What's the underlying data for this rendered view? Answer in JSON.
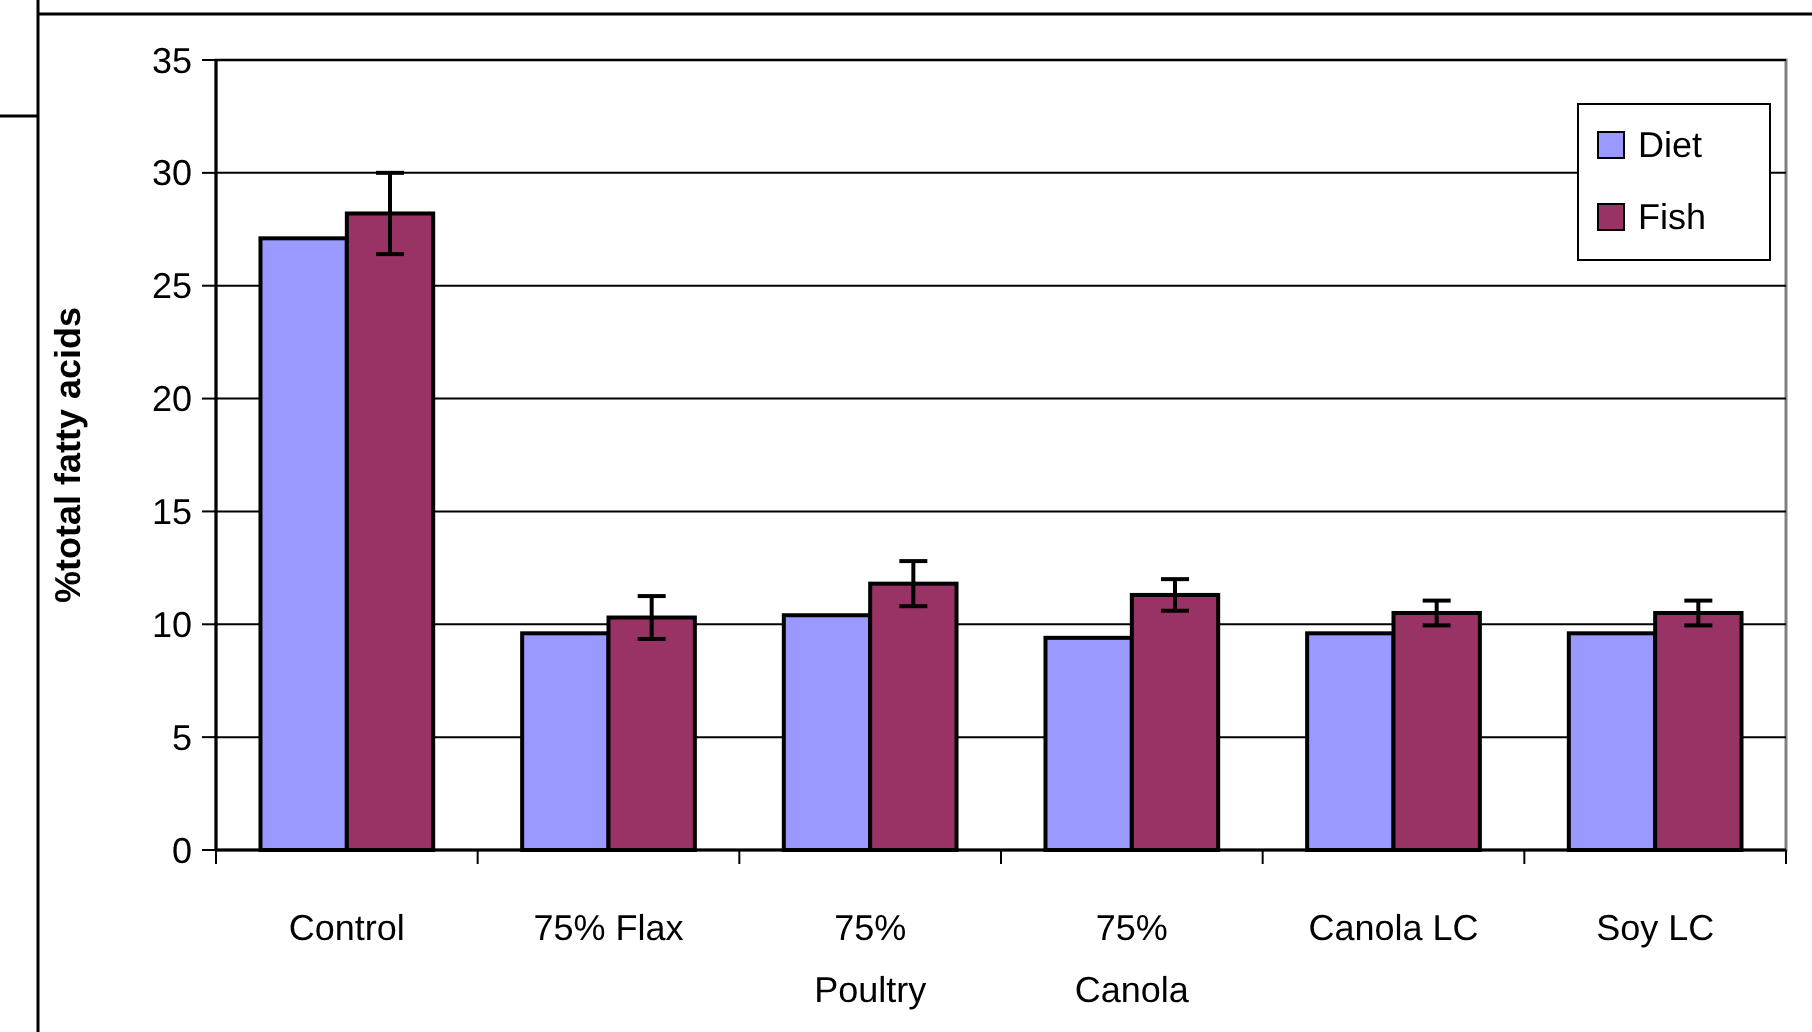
{
  "chart_data": {
    "type": "bar",
    "ylabel": "%total fatty acids",
    "categories": [
      "Control",
      "75% Flax",
      "75%\nPoultry",
      "75%\nCanola",
      "Canola LC",
      "Soy LC"
    ],
    "series": [
      {
        "name": "Diet",
        "color": "#9999ff",
        "values": [
          27.1,
          9.6,
          10.4,
          9.4,
          9.6,
          9.6
        ]
      },
      {
        "name": "Fish",
        "color": "#993366",
        "values": [
          28.2,
          10.3,
          11.8,
          11.3,
          10.5,
          10.5
        ],
        "errors": [
          1.8,
          0.95,
          1.0,
          0.7,
          0.55,
          0.55
        ]
      }
    ],
    "ylim": [
      0,
      35
    ],
    "yticks": [
      0,
      5,
      10,
      15,
      20,
      25,
      30,
      35
    ],
    "grid": "y",
    "legend": "top right"
  }
}
